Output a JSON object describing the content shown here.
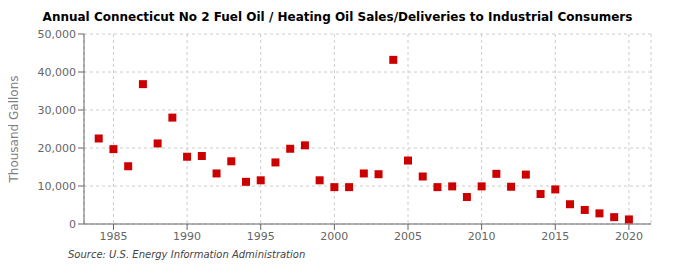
{
  "chart_data": {
    "type": "scatter",
    "title": "Annual Connecticut No 2 Fuel Oil / Heating Oil Sales/Deliveries to Industrial Consumers",
    "y_label": "Thousand Gallons",
    "annotations": [
      "Source: U.S. Energy Information Administration"
    ],
    "x": [
      1984,
      1985,
      1986,
      1987,
      1988,
      1989,
      1990,
      1991,
      1992,
      1993,
      1994,
      1995,
      1996,
      1997,
      1998,
      1999,
      2000,
      2001,
      2002,
      2003,
      2004,
      2005,
      2006,
      2007,
      2008,
      2009,
      2010,
      2011,
      2012,
      2013,
      2014,
      2015,
      2016,
      2017,
      2018,
      2019,
      2020
    ],
    "values": [
      22500,
      19700,
      15200,
      36800,
      21200,
      28000,
      17700,
      17900,
      13300,
      16500,
      11100,
      11500,
      16200,
      19800,
      20700,
      11500,
      9700,
      9700,
      13300,
      13100,
      43200,
      16700,
      12500,
      9700,
      9900,
      7100,
      9900,
      13200,
      9800,
      13000,
      7900,
      9100,
      5200,
      3700,
      2800,
      1800,
      1200
    ],
    "color": "#cc0000",
    "marker": "square",
    "xlim": [
      1983,
      2021.5
    ],
    "xticks": [
      1985,
      1990,
      1995,
      2000,
      2005,
      2010,
      2015,
      2020
    ],
    "ylim": [
      0,
      50000
    ],
    "yticks": [
      0,
      {
        "value": 10000,
        "label": "10,000"
      },
      {
        "value": 20000,
        "label": "20,000"
      },
      {
        "value": 30000,
        "label": "30,000"
      },
      {
        "value": 40000,
        "label": "40,000"
      },
      {
        "value": 50000,
        "label": "50,000"
      }
    ],
    "grid": true
  }
}
